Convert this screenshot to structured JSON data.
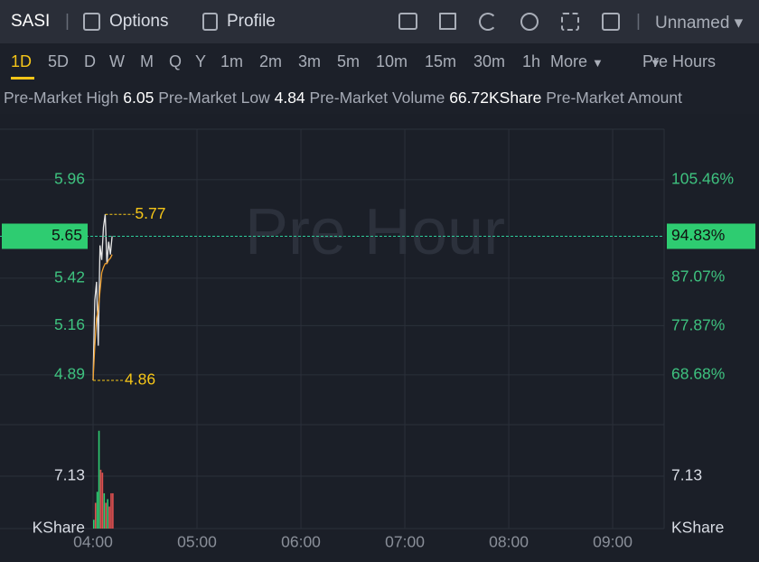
{
  "header": {
    "ticker": "SASI",
    "options": "Options",
    "profile": "Profile",
    "layout": "Unnamed"
  },
  "timeframes": {
    "items": [
      "1D",
      "5D",
      "D",
      "W",
      "M",
      "Q",
      "Y",
      "1m",
      "2m",
      "3m",
      "5m",
      "10m",
      "15m",
      "30m",
      "1h",
      "More"
    ],
    "active": "1D",
    "session": "Pre Hours"
  },
  "stats": [
    {
      "label": "Pre-Market High",
      "value": 6.05
    },
    {
      "label": "Pre-Market Low",
      "value": 4.84
    },
    {
      "label": "Pre-Market Volume",
      "value": "66.72KShare"
    },
    {
      "label": "Pre-Market Amount"
    }
  ],
  "chart_data": {
    "type": "line",
    "watermark": "Pre Hour",
    "x": [
      240,
      241,
      242,
      243,
      244,
      245,
      246,
      247,
      248,
      249,
      250,
      251
    ],
    "xlim": [
      240,
      569.7
    ],
    "xticks": [
      {
        "value": 240,
        "label": "04:00"
      },
      {
        "value": 300,
        "label": "05:00"
      },
      {
        "value": 360,
        "label": "06:00"
      },
      {
        "value": 420,
        "label": "07:00"
      },
      {
        "value": 480,
        "label": "08:00"
      },
      {
        "value": 540,
        "label": "09:00"
      }
    ],
    "ylim": [
      4.617,
      6.237
    ],
    "yticks": [
      5.96,
      5.42,
      5.16,
      4.89
    ],
    "y2lim": [
      59.31,
      115.0
    ],
    "y2ticks": [
      {
        "value": 105.46,
        "label": "105.46%"
      },
      {
        "value": 87.07,
        "label": "87.07%"
      },
      {
        "value": 77.87,
        "label": "77.87%"
      },
      {
        "value": 68.68,
        "label": "68.68%"
      }
    ],
    "series": [
      {
        "name": "Price",
        "color": "#e6e6e6",
        "values": [
          4.86,
          5.3,
          5.4,
          5.05,
          5.6,
          5.52,
          5.7,
          5.77,
          5.5,
          5.62,
          5.55,
          5.65
        ]
      },
      {
        "name": "Average",
        "color": "#f0a030",
        "values": [
          4.86,
          5.05,
          5.2,
          5.25,
          5.35,
          5.45,
          5.48,
          5.5,
          5.5,
          5.52,
          5.53,
          5.55
        ]
      }
    ],
    "high": 5.77,
    "low": 4.86,
    "last": 5.65,
    "last_pct": {
      "value": 94.83,
      "label": "94.83%"
    },
    "volume": {
      "unit": "KShare",
      "vlim": [
        0,
        14.13
      ],
      "vticks": [
        7.13
      ],
      "values": [
        1.2,
        3.5,
        5.0,
        13.3,
        8.0,
        7.6,
        4.8,
        3.5,
        4.0,
        3.0,
        4.8,
        4.8
      ],
      "colors": [
        "#2ecc71",
        "#e05050",
        "#2ecc71",
        "#2ecc71",
        "#e05050",
        "#e05050",
        "#2ecc71",
        "#e05050",
        "#2ecc71",
        "#e05050",
        "#e05050",
        "#e05050"
      ]
    }
  }
}
